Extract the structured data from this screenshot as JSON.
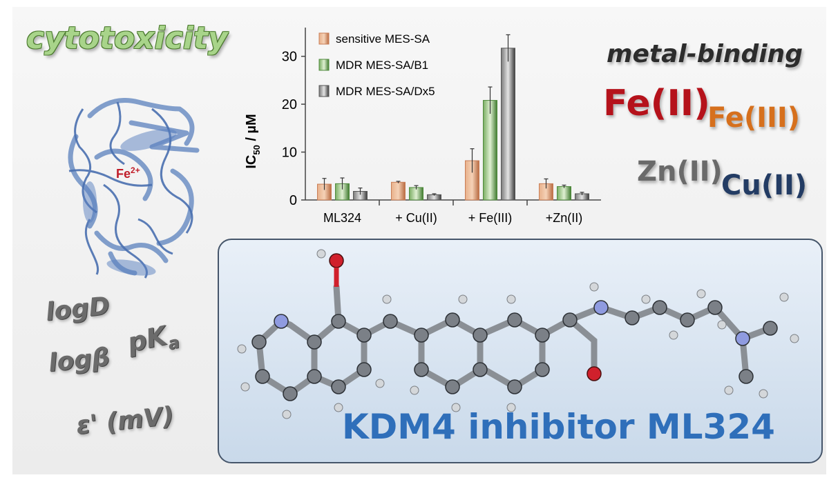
{
  "texts": {
    "cytotoxicity": "cytotoxicity",
    "metal_binding": "metal-binding",
    "fe2": "Fe(II)",
    "fe3": "Fe(III)",
    "zn2": "Zn(II)",
    "cu2": "Cu(II)",
    "logd": "logD",
    "pka": "pK",
    "pka_sub": "a",
    "logbeta": "logβ",
    "epsilon": "ε' (mV)",
    "protein_metal": "Fe",
    "protein_metal_charge": "2+",
    "molecule_title": "KDM4 inhibitor ML324"
  },
  "colors": {
    "sensitive": "#c97d55",
    "b1": "#4f8a3c",
    "dx5": "#555555",
    "title_blue": "#2f6fba"
  },
  "chart_data": {
    "type": "bar",
    "categories": [
      "ML324",
      "+ Cu(II)",
      "+ Fe(III)",
      "+Zn(II)"
    ],
    "series": [
      {
        "name": "sensitive MES-SA",
        "values": [
          3.3,
          3.7,
          8.2,
          3.4
        ],
        "errors": [
          1.2,
          0.2,
          2.5,
          1.0
        ],
        "color": "#c97d55"
      },
      {
        "name": "MDR MES-SA/B1",
        "values": [
          3.4,
          2.6,
          20.8,
          2.8
        ],
        "errors": [
          1.2,
          0.4,
          2.8,
          0.3
        ],
        "color": "#4f8a3c"
      },
      {
        "name": "MDR MES-SA/Dx5",
        "values": [
          1.8,
          1.1,
          31.7,
          1.3
        ],
        "errors": [
          0.7,
          0.2,
          2.8,
          0.3
        ],
        "color": "#555555"
      }
    ],
    "ylabel_main": "IC",
    "ylabel_sub": "50",
    "ylabel_unit": " / µM",
    "ylim": [
      0,
      36
    ],
    "yticks": [
      0,
      10,
      20,
      30
    ],
    "ytick_labels": [
      "0",
      "10",
      "20",
      "30"
    ],
    "legend_position": "top-left"
  }
}
